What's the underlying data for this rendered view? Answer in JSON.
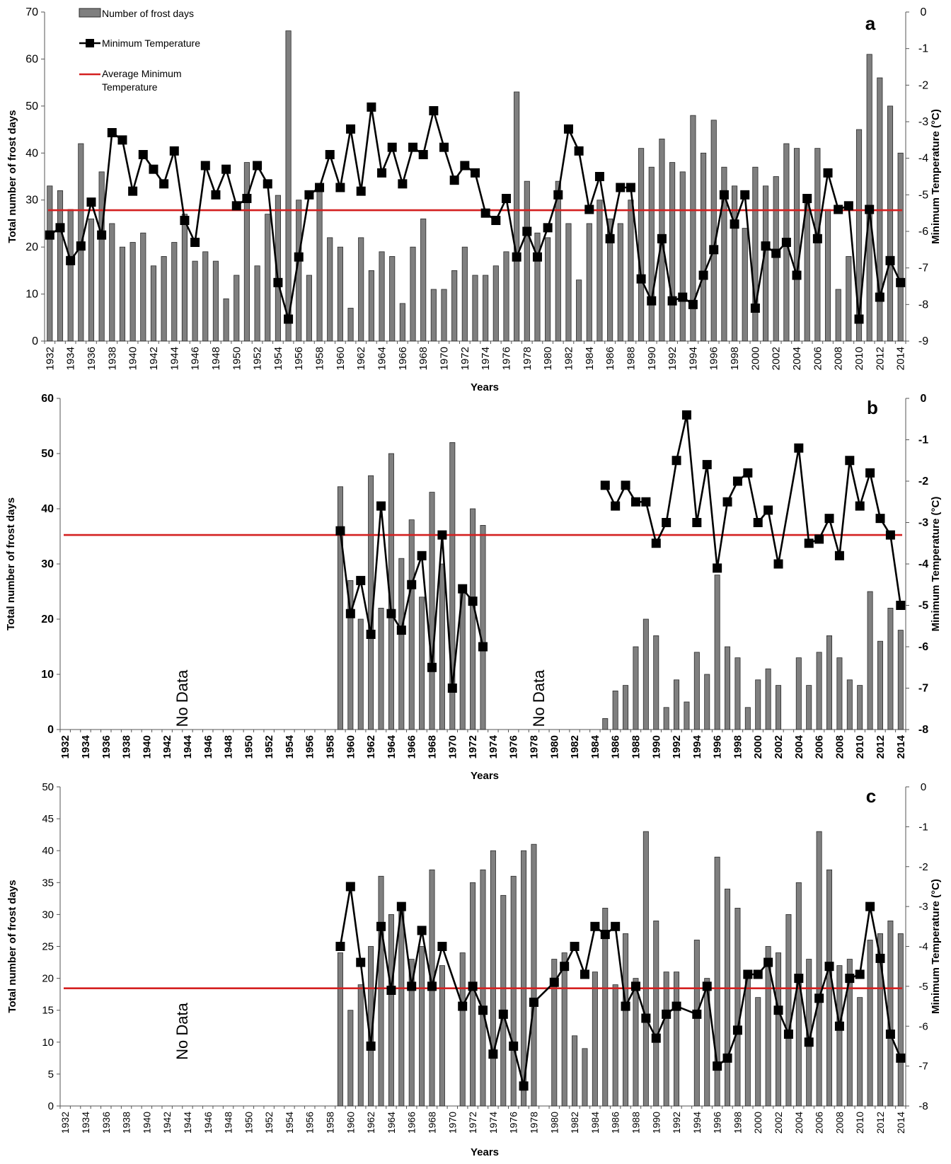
{
  "colors": {
    "bar": "#7f7f7f",
    "bar_edge": "#2a2a2a",
    "temp_line": "#000000",
    "avg_line": "#d42020"
  },
  "chart_data": [
    {
      "type": "bar",
      "panel_label": "a",
      "xlabel": "Years",
      "ylabel": "Total number of frost days",
      "y2label": "Minimum Temperature (°C)",
      "ylim": [
        0,
        70
      ],
      "y_ticks": [
        0,
        10,
        20,
        30,
        40,
        50,
        60,
        70
      ],
      "y2lim": [
        -9,
        0
      ],
      "y2_ticks": [
        0,
        -1,
        -2,
        -3,
        -4,
        -5,
        -6,
        -7,
        -8,
        -9
      ],
      "legend": [
        "Number of frost days",
        "Minimum Temperature",
        "Average Minimum Temperature"
      ],
      "legend_position": "top-left",
      "x": [
        1932,
        1933,
        1934,
        1935,
        1936,
        1937,
        1938,
        1939,
        1940,
        1941,
        1942,
        1943,
        1944,
        1945,
        1946,
        1947,
        1948,
        1949,
        1950,
        1951,
        1952,
        1953,
        1954,
        1955,
        1956,
        1957,
        1958,
        1959,
        1960,
        1961,
        1962,
        1963,
        1964,
        1965,
        1966,
        1967,
        1968,
        1969,
        1970,
        1971,
        1972,
        1973,
        1974,
        1975,
        1976,
        1977,
        1978,
        1979,
        1980,
        1981,
        1982,
        1983,
        1984,
        1985,
        1986,
        1987,
        1988,
        1989,
        1990,
        1991,
        1992,
        1993,
        1994,
        1995,
        1996,
        1997,
        1998,
        1999,
        2000,
        2001,
        2002,
        2003,
        2004,
        2005,
        2006,
        2007,
        2008,
        2009,
        2010,
        2011,
        2012,
        2013,
        2014
      ],
      "series": [
        {
          "name": "Number of frost days",
          "axis": "left",
          "kind": "bar",
          "values": [
            33,
            32,
            28,
            42,
            26,
            36,
            25,
            20,
            21,
            23,
            16,
            18,
            21,
            27,
            17,
            19,
            17,
            9,
            14,
            38,
            16,
            27,
            31,
            66,
            30,
            14,
            32,
            22,
            20,
            7,
            22,
            15,
            19,
            18,
            8,
            20,
            26,
            11,
            11,
            15,
            20,
            14,
            14,
            16,
            19,
            53,
            34,
            23,
            22,
            34,
            25,
            13,
            25,
            30,
            26,
            25,
            30,
            41,
            37,
            43,
            38,
            36,
            48,
            40,
            47,
            37,
            33,
            24,
            37,
            33,
            35,
            42,
            41,
            31,
            41,
            28,
            11,
            18,
            45,
            61,
            56,
            50,
            40
          ]
        },
        {
          "name": "Minimum Temperature",
          "axis": "right",
          "kind": "line",
          "values": [
            -6.1,
            -5.9,
            -6.8,
            -6.4,
            -5.2,
            -6.1,
            -3.3,
            -3.5,
            -4.9,
            -3.9,
            -4.3,
            -4.7,
            -3.8,
            -5.7,
            -6.3,
            -4.2,
            -5.0,
            -4.3,
            -5.3,
            -5.1,
            -4.2,
            -4.7,
            -7.4,
            -8.4,
            -6.7,
            -5.0,
            -4.8,
            -3.9,
            -4.8,
            -3.2,
            -4.9,
            -2.6,
            -4.4,
            -3.7,
            -4.7,
            -3.7,
            -3.9,
            -2.7,
            -3.7,
            -4.6,
            -4.2,
            -4.4,
            -5.5,
            -5.7,
            -5.1,
            -6.7,
            -6.0,
            -6.7,
            -5.9,
            -5.0,
            -3.2,
            -3.8,
            -5.4,
            -4.5,
            -6.2,
            -4.8,
            -4.8,
            -7.3,
            -7.9,
            -6.2,
            -7.9,
            -7.8,
            -8.0,
            -7.2,
            -6.5,
            -5.0,
            -5.8,
            -5.0,
            -8.1,
            -6.4,
            -6.6,
            -6.3,
            -7.2,
            -5.1,
            -6.2,
            -4.4,
            -5.4,
            -5.3,
            -8.4,
            -5.4,
            -7.8,
            -6.8,
            -7.4
          ]
        },
        {
          "name": "Average Minimum Temperature",
          "axis": "right",
          "kind": "hline",
          "value": -5.42
        }
      ]
    },
    {
      "type": "bar",
      "panel_label": "b",
      "xlabel": "Years",
      "ylabel": "Total number of frost days",
      "y2label": "Minimum Temperature (°C)",
      "ylim": [
        0,
        60
      ],
      "y_ticks": [
        0,
        10,
        20,
        30,
        40,
        50,
        60
      ],
      "y2lim": [
        -8,
        0
      ],
      "y2_ticks": [
        0,
        -1,
        -2,
        -3,
        -4,
        -5,
        -6,
        -7,
        -8
      ],
      "annotations": [
        {
          "text": "No Data",
          "x": 1944
        },
        {
          "text": "No Data",
          "x": 1979
        }
      ],
      "series": [
        {
          "name": "Number of frost days",
          "axis": "left",
          "kind": "bar",
          "x": [
            1959,
            1960,
            1961,
            1962,
            1963,
            1964,
            1965,
            1966,
            1967,
            1968,
            1969,
            1970,
            1971,
            1972,
            1973,
            1985,
            1986,
            1987,
            1988,
            1989,
            1990,
            1991,
            1992,
            1993,
            1994,
            1995,
            1996,
            1997,
            1998,
            1999,
            2000,
            2001,
            2002,
            2003,
            2004,
            2005,
            2006,
            2007,
            2008,
            2009,
            2010,
            2011,
            2012,
            2013,
            2014
          ],
          "values": [
            44,
            27,
            20,
            46,
            22,
            50,
            31,
            38,
            24,
            43,
            30,
            52,
            25,
            40,
            37,
            2,
            7,
            8,
            15,
            20,
            17,
            4,
            9,
            5,
            14,
            10,
            28,
            15,
            13,
            4,
            9,
            11,
            8,
            0,
            13,
            8,
            14,
            17,
            13,
            9,
            8,
            25,
            16,
            22,
            18
          ]
        },
        {
          "name": "Minimum Temperature",
          "axis": "right",
          "kind": "line",
          "segments": [
            {
              "x": [
                1959,
                1960,
                1961,
                1962,
                1963,
                1964,
                1965,
                1966,
                1967,
                1968,
                1969,
                1970,
                1971,
                1972,
                1973
              ],
              "values": [
                -3.2,
                -5.2,
                -4.4,
                -5.7,
                -2.6,
                -5.2,
                -5.6,
                -4.5,
                -3.8,
                -6.5,
                -3.3,
                -7.0,
                -4.6,
                -4.9,
                -6.0
              ]
            },
            {
              "x": [
                1985,
                1986,
                1987,
                1988,
                1989,
                1990,
                1991,
                1992,
                1993,
                1994,
                1995,
                1996,
                1997,
                1998,
                1999,
                2000,
                2001,
                2002,
                2003,
                2004,
                2005,
                2006,
                2007,
                2008,
                2009,
                2010,
                2011,
                2012,
                2013,
                2014
              ],
              "values": [
                -2.1,
                -2.6,
                -2.1,
                -2.5,
                -2.5,
                -3.5,
                -3.0,
                -1.5,
                -0.4,
                -3.0,
                -1.6,
                -4.1,
                -2.5,
                -2.0,
                -1.8,
                -3.0,
                -2.7,
                -4.0,
                null,
                -1.2,
                -3.5,
                -3.4,
                -2.9,
                -3.8,
                -1.5,
                -2.6,
                -1.8,
                -2.9,
                -3.3,
                -5.0
              ]
            }
          ]
        },
        {
          "name": "Average Minimum Temperature",
          "axis": "right",
          "kind": "hline",
          "value": -3.3
        }
      ]
    },
    {
      "type": "bar",
      "panel_label": "c",
      "xlabel": "Years",
      "ylabel": "Total number of frost days",
      "y2label": "Minimum Temperature (°C)",
      "ylim": [
        0,
        50
      ],
      "y_ticks": [
        0,
        5,
        10,
        15,
        20,
        25,
        30,
        35,
        40,
        45,
        50
      ],
      "y2lim": [
        -8,
        0
      ],
      "y2_ticks": [
        0,
        -1,
        -2,
        -3,
        -4,
        -5,
        -6,
        -7,
        -8
      ],
      "annotations": [
        {
          "text": "No Data",
          "x": 1944
        }
      ],
      "series": [
        {
          "name": "Number of frost days",
          "axis": "left",
          "kind": "bar",
          "x": [
            1959,
            1960,
            1961,
            1962,
            1963,
            1964,
            1965,
            1966,
            1967,
            1968,
            1969,
            1970,
            1971,
            1972,
            1973,
            1974,
            1975,
            1976,
            1977,
            1978,
            1979,
            1980,
            1981,
            1982,
            1983,
            1984,
            1985,
            1986,
            1987,
            1988,
            1989,
            1990,
            1991,
            1992,
            1993,
            1994,
            1995,
            1996,
            1997,
            1998,
            1999,
            2000,
            2001,
            2002,
            2003,
            2004,
            2005,
            2006,
            2007,
            2008,
            2009,
            2010,
            2011,
            2012,
            2013,
            2014
          ],
          "values": [
            24,
            15,
            19,
            25,
            36,
            30,
            31,
            23,
            25,
            37,
            22,
            0,
            24,
            35,
            37,
            40,
            33,
            36,
            40,
            41,
            0,
            23,
            24,
            11,
            9,
            21,
            31,
            19,
            27,
            20,
            43,
            29,
            21,
            21,
            0,
            26,
            20,
            39,
            34,
            31,
            21,
            17,
            25,
            24,
            30,
            35,
            23,
            43,
            37,
            22,
            23,
            17,
            26,
            27,
            29,
            27
          ]
        },
        {
          "name": "Minimum Temperature",
          "axis": "right",
          "kind": "line",
          "x": [
            1959,
            1960,
            1961,
            1962,
            1963,
            1964,
            1965,
            1966,
            1967,
            1968,
            1969,
            1971,
            1972,
            1973,
            1974,
            1975,
            1976,
            1977,
            1978,
            1980,
            1981,
            1982,
            1983,
            1984,
            1985,
            1986,
            1987,
            1988,
            1989,
            1990,
            1991,
            1992,
            1994,
            1995,
            1996,
            1997,
            1998,
            1999,
            2000,
            2001,
            2002,
            2003,
            2004,
            2005,
            2006,
            2007,
            2008,
            2009,
            2010,
            2011,
            2012,
            2013,
            2014
          ],
          "values": [
            -4.0,
            -2.5,
            -4.4,
            -6.5,
            -3.5,
            -5.1,
            -3.0,
            -5.0,
            -3.6,
            -5.0,
            -4.0,
            -5.5,
            -5.0,
            -5.6,
            -6.7,
            -5.7,
            -6.5,
            -7.5,
            -5.4,
            -4.9,
            -4.5,
            -4.0,
            -4.7,
            -3.5,
            -3.7,
            -3.5,
            -5.5,
            -5.0,
            -5.8,
            -6.3,
            -5.7,
            -5.5,
            -5.7,
            -5.0,
            -7.0,
            -6.8,
            -6.1,
            -4.7,
            -4.7,
            -4.4,
            -5.6,
            -6.2,
            -4.8,
            -6.4,
            -5.3,
            -4.5,
            -6.0,
            -4.8,
            -4.7,
            -3.0,
            -4.3,
            -6.2,
            -6.8
          ]
        },
        {
          "name": "Average Minimum Temperature",
          "axis": "right",
          "kind": "hline",
          "value": -5.05
        }
      ]
    }
  ]
}
